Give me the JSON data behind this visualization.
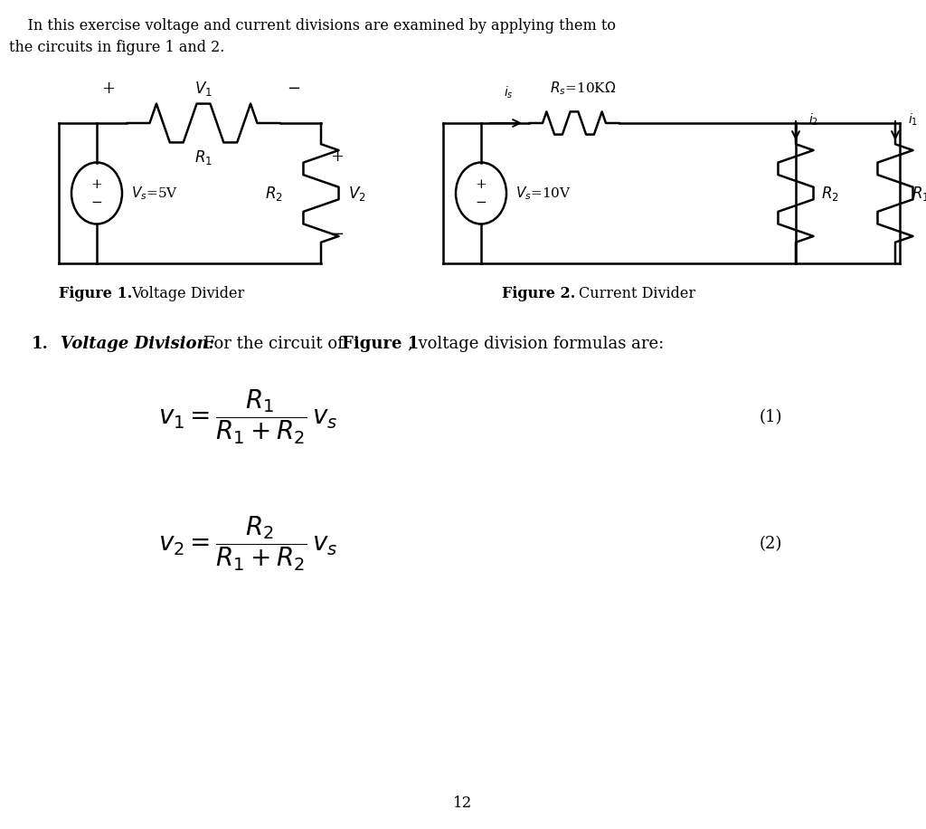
{
  "intro_line1": "    In this exercise voltage and current divisions are examined by applying them to",
  "intro_line2": "the circuits in figure 1 and 2.",
  "fig1_caption_bold": "Figure 1.",
  "fig1_caption_rest": "  Voltage Divider",
  "fig2_caption_bold": "Figure 2.",
  "fig2_caption_rest": "  Current Divider",
  "section_num": "1.",
  "section_bold_italic": "Voltage Division:",
  "section_rest": " For the circuit of ",
  "section_fig": "Figure 1",
  "section_end": ", voltage division formulas are:",
  "eq1_num": "(1)",
  "eq2_num": "(2)",
  "page_num": "12",
  "lw": 1.8,
  "bg": "#ffffff"
}
